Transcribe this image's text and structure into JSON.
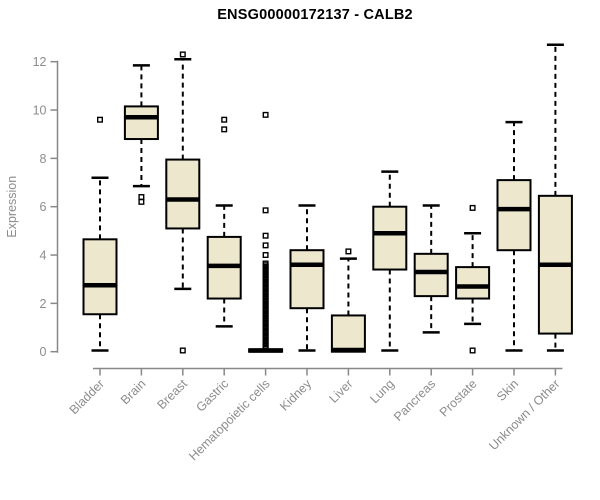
{
  "colors": {
    "background": "#ffffff",
    "box_fill": "#EDE7CD",
    "box_stroke": "#000000",
    "median_color": "#000000",
    "whisker_color": "#000000",
    "outlier_color": "#000000",
    "axis_color": "#888888",
    "tick_label_color": "#8c8c8c",
    "title_color": "#000000"
  },
  "chart_data": {
    "type": "boxplot",
    "title": "ENSG00000172137 - CALB2",
    "xlabel": "",
    "ylabel": "Expression",
    "ylim": [
      0,
      12.8
    ],
    "yticks": [
      0,
      2,
      4,
      6,
      8,
      10,
      12
    ],
    "grid": "off",
    "legend": "none",
    "categories": [
      "Bladder",
      "Brain",
      "Breast",
      "Gastric",
      "Hematopoietic cells",
      "Kidney",
      "Liver",
      "Lung",
      "Pancreas",
      "Prostate",
      "Skin",
      "Unknown / Other"
    ],
    "series": [
      {
        "name": "Bladder",
        "whisker_low": 0.05,
        "q1": 1.55,
        "median": 2.75,
        "q3": 4.65,
        "whisker_high": 7.2,
        "outliers": [
          9.6
        ]
      },
      {
        "name": "Brain",
        "whisker_low": 6.85,
        "q1": 8.8,
        "median": 9.7,
        "q3": 10.15,
        "whisker_high": 11.85,
        "outliers": [
          6.4,
          6.2
        ]
      },
      {
        "name": "Breast",
        "whisker_low": 2.6,
        "q1": 5.1,
        "median": 6.3,
        "q3": 7.95,
        "whisker_high": 12.1,
        "outliers": [
          12.3,
          0.05
        ]
      },
      {
        "name": "Gastric",
        "whisker_low": 1.05,
        "q1": 2.2,
        "median": 3.55,
        "q3": 4.75,
        "whisker_high": 6.05,
        "outliers": [
          9.6,
          9.2
        ]
      },
      {
        "name": "Hematopoietic cells",
        "whisker_low": 0.0,
        "q1": 0.0,
        "median": 0.05,
        "q3": 0.1,
        "whisker_high": 0.1,
        "outliers": [
          9.8,
          5.85,
          4.8,
          4.4,
          4.0
        ],
        "outlier_column": {
          "from": 0.15,
          "to": 3.65,
          "step": 0.07
        }
      },
      {
        "name": "Kidney",
        "whisker_low": 0.05,
        "q1": 1.8,
        "median": 3.6,
        "q3": 4.2,
        "whisker_high": 6.05,
        "outliers": []
      },
      {
        "name": "Liver",
        "whisker_low": 0.0,
        "q1": 0.0,
        "median": 0.07,
        "q3": 1.5,
        "whisker_high": 3.85,
        "outliers": [
          4.15
        ]
      },
      {
        "name": "Lung",
        "whisker_low": 0.05,
        "q1": 3.4,
        "median": 4.9,
        "q3": 6.0,
        "whisker_high": 7.45,
        "outliers": []
      },
      {
        "name": "Pancreas",
        "whisker_low": 0.8,
        "q1": 2.3,
        "median": 3.3,
        "q3": 4.05,
        "whisker_high": 6.05,
        "outliers": []
      },
      {
        "name": "Prostate",
        "whisker_low": 1.15,
        "q1": 2.2,
        "median": 2.7,
        "q3": 3.5,
        "whisker_high": 4.9,
        "outliers": [
          5.95,
          0.05
        ]
      },
      {
        "name": "Skin",
        "whisker_low": 0.05,
        "q1": 4.2,
        "median": 5.9,
        "q3": 7.1,
        "whisker_high": 9.5,
        "outliers": []
      },
      {
        "name": "Unknown / Other",
        "whisker_low": 0.05,
        "q1": 0.75,
        "median": 3.6,
        "q3": 6.45,
        "whisker_high": 12.7,
        "outliers": []
      }
    ]
  }
}
